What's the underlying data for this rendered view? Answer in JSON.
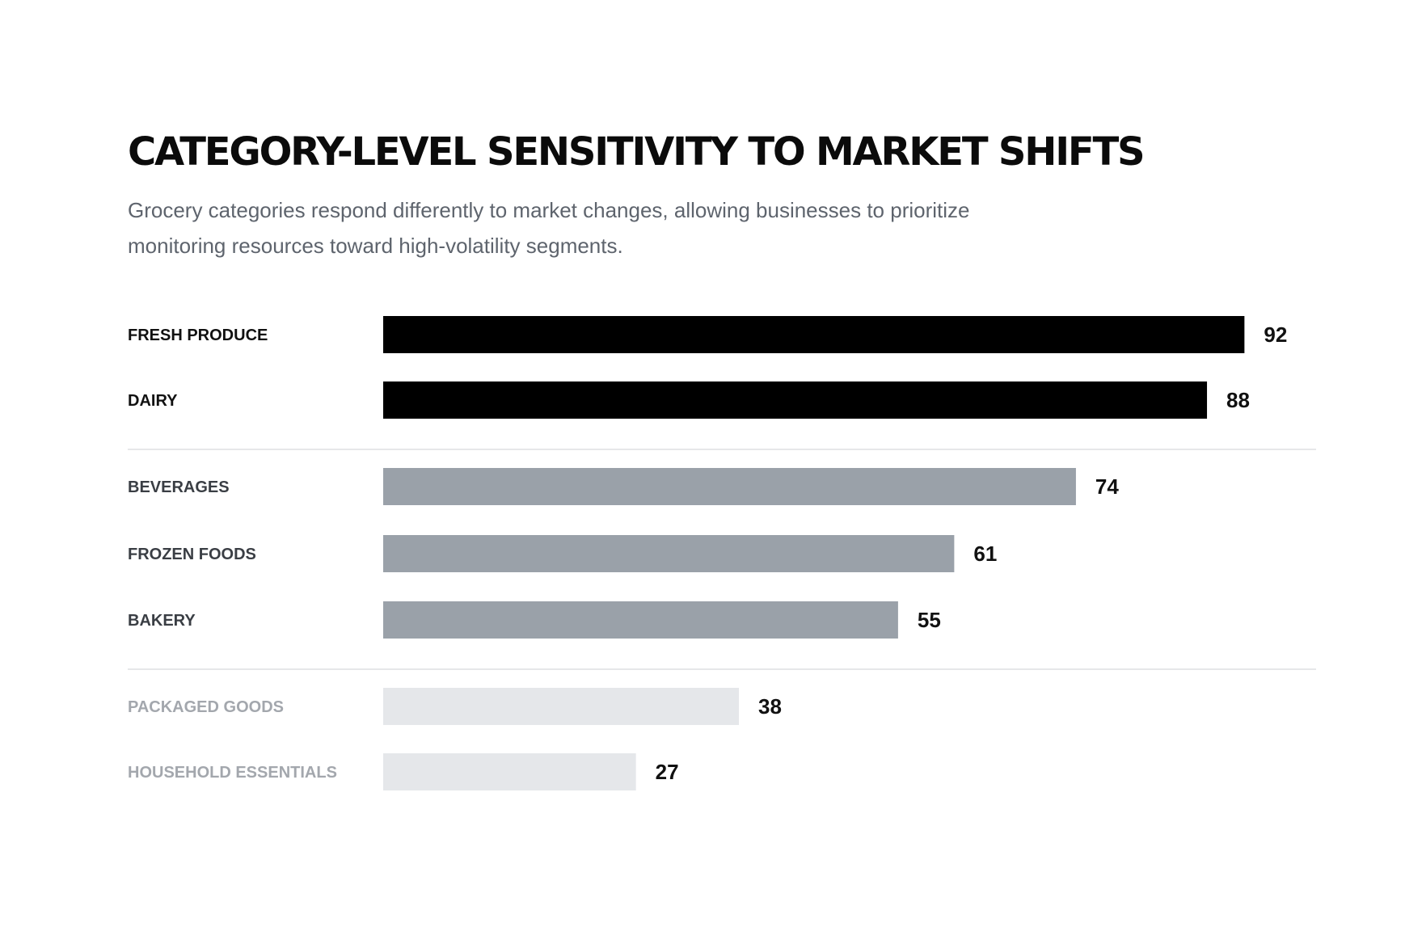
{
  "chart_data": {
    "type": "bar",
    "orientation": "horizontal",
    "title": "CATEGORY-LEVEL SENSITIVITY TO MARKET SHIFTS",
    "subtitle": "Grocery categories respond differently to market changes, allowing businesses to prioritize monitoring resources toward high-volatility segments.",
    "categories": [
      "FRESH PRODUCE",
      "DAIRY",
      "BEVERAGES",
      "FROZEN FOODS",
      "BAKERY",
      "PACKAGED GOODS",
      "HOUSEHOLD ESSENTIALS"
    ],
    "values": [
      92,
      88,
      74,
      61,
      55,
      38,
      27
    ],
    "groups": [
      {
        "items": [
          "FRESH PRODUCE",
          "DAIRY"
        ],
        "bar_color": "#000000",
        "label_color": "#111111"
      },
      {
        "items": [
          "BEVERAGES",
          "FROZEN FOODS",
          "BAKERY"
        ],
        "bar_color": "#9aa1a9",
        "label_color": "#3a3e44"
      },
      {
        "items": [
          "PACKAGED GOODS",
          "HOUSEHOLD ESSENTIALS"
        ],
        "bar_color": "#e5e7ea",
        "label_color": "#a3a7ad"
      }
    ],
    "value_label_color": "#111111",
    "divider_color": "#e6e7e9",
    "grid": false,
    "legend": "none",
    "xlim": [
      0,
      92
    ]
  }
}
